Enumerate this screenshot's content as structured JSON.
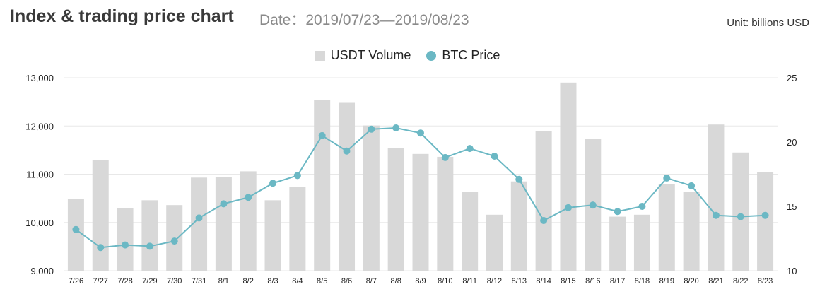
{
  "header": {
    "title": "Index & trading price chart",
    "date": "Date：2019/07/23—2019/08/23",
    "unit": "Unit: billions USD"
  },
  "colors": {
    "bar": "#d8d8d8",
    "line": "#6bb8c4",
    "grid": "#e8e8e8",
    "axis_text": "#222222"
  },
  "chart_data": {
    "type": "bar",
    "categories": [
      "7/26",
      "7/27",
      "7/28",
      "7/29",
      "7/30",
      "7/31",
      "8/1",
      "8/2",
      "8/3",
      "8/4",
      "8/5",
      "8/6",
      "8/7",
      "8/8",
      "8/9",
      "8/10",
      "8/11",
      "8/12",
      "8/13",
      "8/14",
      "8/15",
      "8/16",
      "8/17",
      "8/18",
      "8/19",
      "8/20",
      "8/21",
      "8/22",
      "8/23"
    ],
    "series": [
      {
        "name": "USDT Volume",
        "type": "bar",
        "axis": "left",
        "values": [
          10480,
          11290,
          10300,
          10460,
          10360,
          10930,
          10940,
          11060,
          10460,
          10740,
          12540,
          12480,
          12010,
          11540,
          11420,
          11360,
          10640,
          10160,
          10850,
          11900,
          12900,
          11730,
          10120,
          10160,
          10800,
          10640,
          12030,
          11450,
          11040
        ]
      },
      {
        "name": "BTC Price",
        "type": "line",
        "axis": "right",
        "values": [
          13.2,
          11.8,
          12.0,
          11.9,
          12.3,
          14.1,
          15.2,
          15.7,
          16.8,
          17.4,
          20.5,
          19.3,
          21.0,
          21.1,
          20.7,
          18.8,
          19.5,
          18.9,
          17.1,
          13.9,
          14.9,
          15.1,
          14.6,
          15.0,
          17.2,
          16.6,
          14.3,
          14.2,
          14.3
        ]
      }
    ],
    "y_left": {
      "min": 9000,
      "max": 13000,
      "ticks": [
        9000,
        10000,
        11000,
        12000,
        13000
      ],
      "tick_labels": [
        "9,000",
        "10,000",
        "11,000",
        "12,000",
        "13,000"
      ]
    },
    "y_right": {
      "min": 10,
      "max": 25,
      "ticks": [
        10,
        15,
        20,
        25
      ],
      "tick_labels": [
        "10",
        "15",
        "20",
        "25"
      ]
    },
    "grid": true,
    "legend_position": "top-center"
  }
}
